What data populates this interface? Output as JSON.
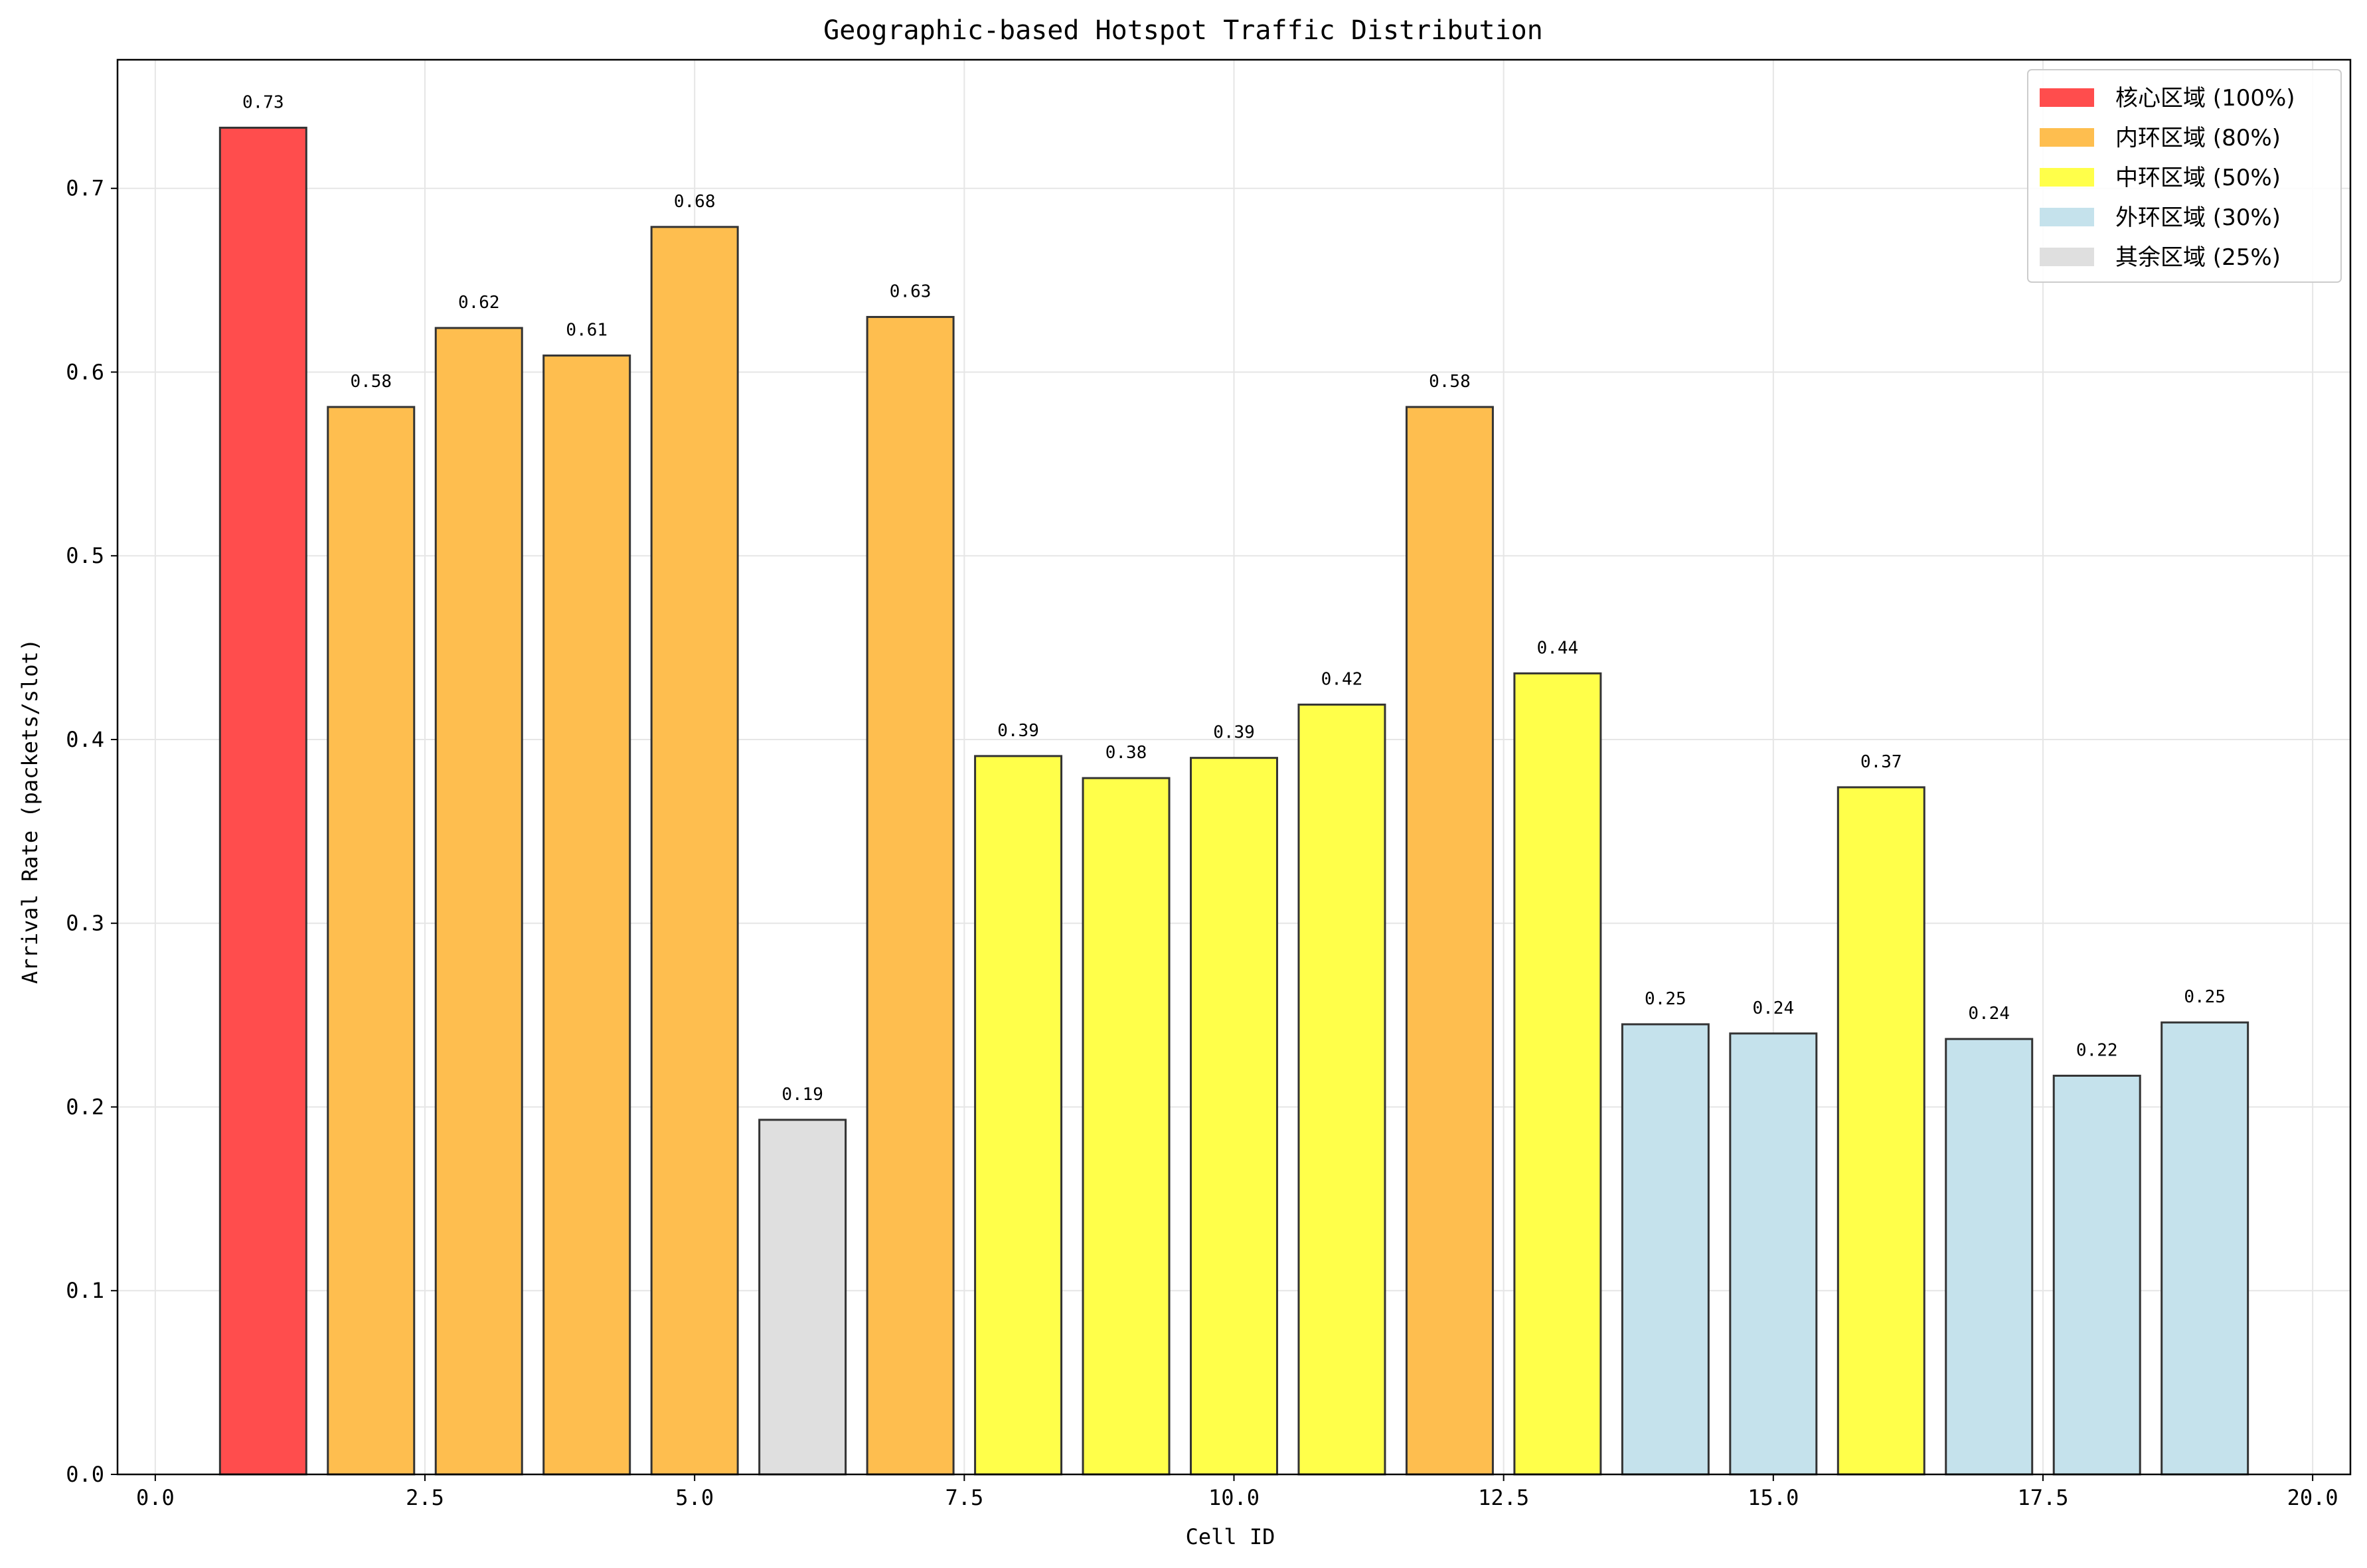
{
  "chart_data": {
    "type": "bar",
    "title": "Geographic-based Hotspot Traffic Distribution",
    "xlabel": "Cell ID",
    "ylabel": "Arrival Rate (packets/slot)",
    "xlim": [
      -0.35,
      20.35
    ],
    "ylim": [
      0.0,
      0.77
    ],
    "x_ticks": [
      "0.0",
      "2.5",
      "5.0",
      "7.5",
      "10.0",
      "12.5",
      "15.0",
      "17.5",
      "20.0"
    ],
    "y_ticks": [
      "0.0",
      "0.1",
      "0.2",
      "0.3",
      "0.4",
      "0.5",
      "0.6",
      "0.7"
    ],
    "grid": true,
    "legend_position": "top-right",
    "legend": [
      {
        "label": "核心区域 (100%)",
        "color": "#ff4d4d"
      },
      {
        "label": "内环区域 (80%)",
        "color": "#febe4f"
      },
      {
        "label": "中环区域 (50%)",
        "color": "#ffff4a"
      },
      {
        "label": "外环区域 (30%)",
        "color": "#c5e2ec"
      },
      {
        "label": "其余区域 (25%)",
        "color": "#dfdfdf"
      }
    ],
    "bars": [
      {
        "x": 1,
        "value": 0.733,
        "label": "0.73",
        "zone": 0
      },
      {
        "x": 2,
        "value": 0.581,
        "label": "0.58",
        "zone": 1
      },
      {
        "x": 3,
        "value": 0.624,
        "label": "0.62",
        "zone": 1
      },
      {
        "x": 4,
        "value": 0.609,
        "label": "0.61",
        "zone": 1
      },
      {
        "x": 5,
        "value": 0.679,
        "label": "0.68",
        "zone": 1
      },
      {
        "x": 6,
        "value": 0.193,
        "label": "0.19",
        "zone": 4
      },
      {
        "x": 7,
        "value": 0.63,
        "label": "0.63",
        "zone": 1
      },
      {
        "x": 8,
        "value": 0.391,
        "label": "0.39",
        "zone": 2
      },
      {
        "x": 9,
        "value": 0.379,
        "label": "0.38",
        "zone": 2
      },
      {
        "x": 10,
        "value": 0.39,
        "label": "0.39",
        "zone": 2
      },
      {
        "x": 11,
        "value": 0.419,
        "label": "0.42",
        "zone": 2
      },
      {
        "x": 12,
        "value": 0.581,
        "label": "0.58",
        "zone": 1
      },
      {
        "x": 13,
        "value": 0.436,
        "label": "0.44",
        "zone": 2
      },
      {
        "x": 14,
        "value": 0.245,
        "label": "0.25",
        "zone": 3
      },
      {
        "x": 15,
        "value": 0.24,
        "label": "0.24",
        "zone": 3
      },
      {
        "x": 16,
        "value": 0.374,
        "label": "0.37",
        "zone": 2
      },
      {
        "x": 17,
        "value": 0.237,
        "label": "0.24",
        "zone": 3
      },
      {
        "x": 18,
        "value": 0.217,
        "label": "0.22",
        "zone": 3
      },
      {
        "x": 19,
        "value": 0.246,
        "label": "0.25",
        "zone": 3
      }
    ]
  }
}
